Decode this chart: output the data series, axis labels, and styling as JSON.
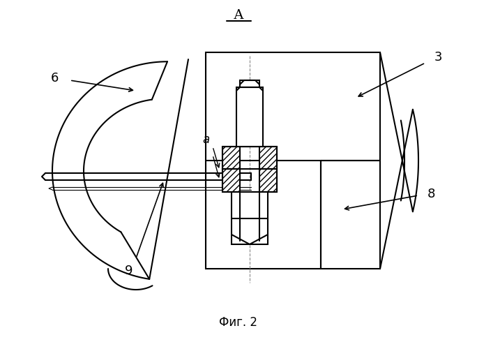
{
  "title": "А",
  "caption": "Фиг. 2",
  "bg_color": "#ffffff",
  "line_color": "#000000",
  "lw": 1.5,
  "lw_thin": 0.8
}
